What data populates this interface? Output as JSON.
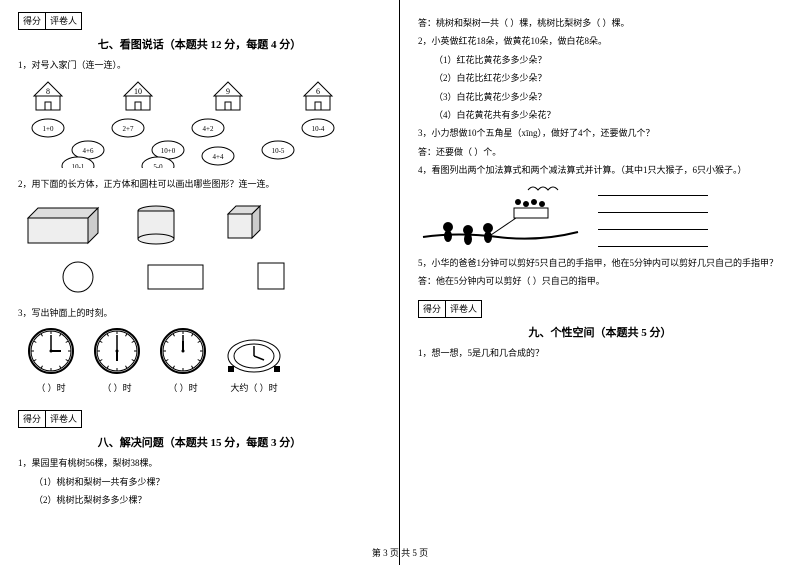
{
  "footer": "第 3 页 共 5 页",
  "labels": {
    "score": "得分",
    "reviewer": "评卷人"
  },
  "section7": {
    "title": "七、看图说话（本题共 12 分，每题 4 分）",
    "q1": "1，对号入家门（连一连）。",
    "houses": [
      "8",
      "10",
      "9",
      "6"
    ],
    "clouds": [
      "1+0",
      "4+6",
      "2+7",
      "10+0",
      "4+2",
      "10-4",
      "10-1",
      "5-0",
      "4+4",
      "10-5"
    ],
    "q2": "2，用下面的长方体，正方体和圆柱可以画出哪些图形？连一连。",
    "q3": "3，写出钟面上的时刻。",
    "clock_label": "（    ）时",
    "clock_label_approx": "大约（    ）时",
    "clock_times": [
      {
        "h": 3,
        "m": 0
      },
      {
        "h": 6,
        "m": 0
      },
      {
        "h": 12,
        "m": 0
      },
      {
        "h": 4,
        "m": 0
      }
    ]
  },
  "section8": {
    "title": "八、解决问题（本题共 15 分，每题 3 分）",
    "q1": "1，果园里有桃树56棵，梨树38棵。",
    "q1_1": "（1）桃树和梨树一共有多少棵？",
    "q1_2": "（2）桃树比梨树多多少棵？",
    "q1_answer": "答：桃树和梨树一共（    ）棵，桃树比梨树多（    ）棵。",
    "q2": "2，小英做红花18朵，做黄花10朵，做白花8朵。",
    "q2_1": "（1）红花比黄花多多少朵？",
    "q2_2": "（2）白花比红花少多少朵？",
    "q2_3": "（3）白花比黄花少多少朵？",
    "q2_4": "（4）白花黄花共有多少朵花？",
    "q3": "3，小力想做10个五角星（xīng），做好了4个，还要做几个？",
    "q3_answer": "答：还要做（    ）个。",
    "q4": "4，看图列出两个加法算式和两个减法算式并计算。（其中1只大猴子，6只小猴子。）",
    "q5": "5，小华的爸爸1分钟可以剪好5只自己的手指甲，他在5分钟内可以剪好几只自己的手指甲？",
    "q5_answer": "答：他在5分钟内可以剪好（    ）只自己的指甲。"
  },
  "section9": {
    "title": "九、个性空间（本题共 5 分）",
    "q1": "1，想一想，5是几和几合成的？"
  },
  "style": {
    "page_bg": "#ffffff",
    "text_color": "#000000",
    "border_color": "#000000",
    "font_main": "SimSun",
    "font_size_body": 9,
    "font_size_title": 11
  }
}
